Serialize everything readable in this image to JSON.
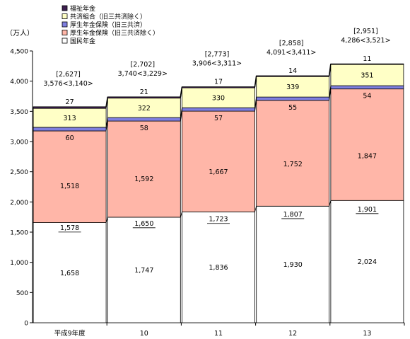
{
  "chart_data": {
    "type": "bar",
    "stacked": true,
    "unit_label": "（万人）",
    "categories": [
      "平成9年度",
      "10",
      "11",
      "12",
      "13"
    ],
    "ylim": [
      0,
      4500
    ],
    "yticks": [
      0,
      500,
      1000,
      1500,
      2000,
      2500,
      3000,
      3500,
      4000,
      4500
    ],
    "ytick_labels": [
      "0",
      "500",
      "1,000",
      "1,500",
      "2,000",
      "2,500",
      "3,000",
      "3,500",
      "4,000",
      "4,500"
    ],
    "grid": false,
    "legend_position": "top-left",
    "series": [
      {
        "name": "国民年金",
        "color": "#ffffff",
        "values": [
          1658,
          1747,
          1836,
          1930,
          2024
        ]
      },
      {
        "name": "厚生年金保険（旧三共済除く）",
        "color": "#ffb6a8",
        "values": [
          1518,
          1592,
          1667,
          1752,
          1847
        ]
      },
      {
        "name": "厚生年金保険（旧三共済）",
        "color": "#7f7fdf",
        "values": [
          60,
          58,
          57,
          55,
          54
        ]
      },
      {
        "name": "共済組合（旧三共済除く）",
        "color": "#ffffc6",
        "values": [
          313,
          322,
          330,
          339,
          351
        ]
      },
      {
        "name": "福祉年金",
        "color": "#3d1f4f",
        "values": [
          27,
          21,
          17,
          14,
          11
        ]
      }
    ],
    "underlined_labels": [
      "1,578",
      "1,650",
      "1,723",
      "1,807",
      "1,901"
    ],
    "total_labels": [
      "3,576<3,140>",
      "3,740<3,229>",
      "3,906<3,311>",
      "4,091<3,411>",
      "4,286<3,521>"
    ],
    "bracket_labels": [
      "[2,627]",
      "[2,702]",
      "[2,773]",
      "[2,858]",
      "[2,951]"
    ],
    "totals": [
      3576,
      3740,
      3906,
      4091,
      4286
    ]
  }
}
